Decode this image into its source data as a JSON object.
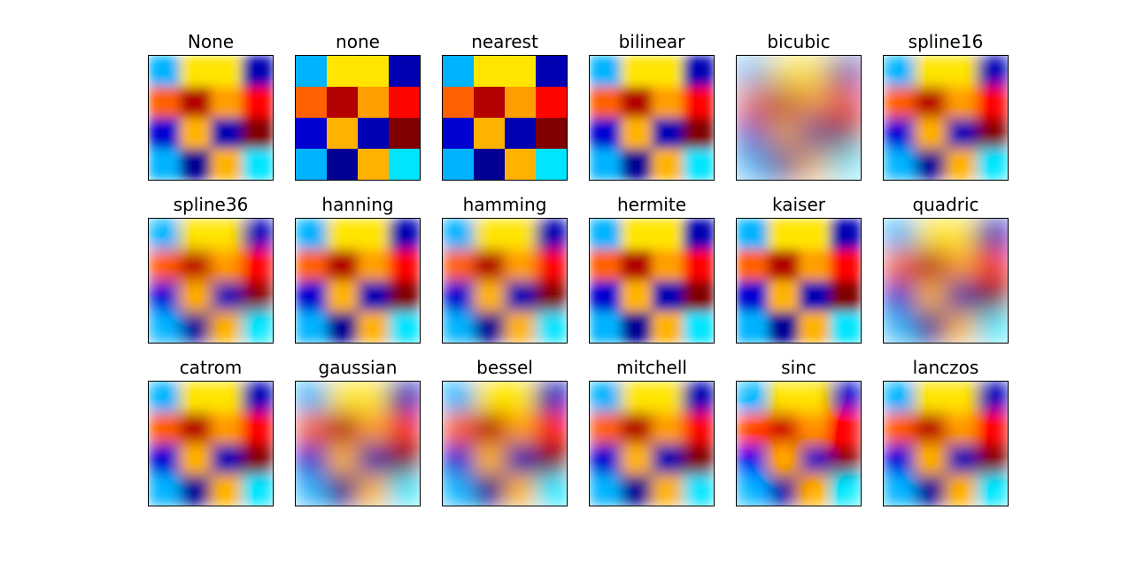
{
  "chart_data": {
    "type": "heatmap",
    "grid_rows": 3,
    "grid_cols": 6,
    "colormap": "jet",
    "matrix": [
      [
        0.3,
        0.65,
        0.65,
        0.05
      ],
      [
        0.78,
        0.95,
        0.72,
        0.87
      ],
      [
        0.08,
        0.7,
        0.05,
        1.0
      ],
      [
        0.3,
        0.02,
        0.7,
        0.35
      ]
    ],
    "panels": [
      {
        "title": "None",
        "blur": 6,
        "contrast": 1.0
      },
      {
        "title": "none",
        "blur": 0,
        "contrast": 1.0
      },
      {
        "title": "nearest",
        "blur": 0,
        "contrast": 1.0
      },
      {
        "title": "bilinear",
        "blur": 6,
        "contrast": 1.0
      },
      {
        "title": "bicubic",
        "blur": 18,
        "contrast": 0.9
      },
      {
        "title": "spline16",
        "blur": 8,
        "contrast": 1.05
      },
      {
        "title": "spline36",
        "blur": 9,
        "contrast": 1.1
      },
      {
        "title": "hanning",
        "blur": 7,
        "contrast": 1.0
      },
      {
        "title": "hamming",
        "blur": 8,
        "contrast": 1.0
      },
      {
        "title": "hermite",
        "blur": 6,
        "contrast": 1.0
      },
      {
        "title": "kaiser",
        "blur": 6,
        "contrast": 1.0
      },
      {
        "title": "quadric",
        "blur": 14,
        "contrast": 0.95
      },
      {
        "title": "catrom",
        "blur": 8,
        "contrast": 1.05
      },
      {
        "title": "gaussian",
        "blur": 13,
        "contrast": 0.95
      },
      {
        "title": "bessel",
        "blur": 12,
        "contrast": 1.0
      },
      {
        "title": "mitchell",
        "blur": 8,
        "contrast": 1.0
      },
      {
        "title": "sinc",
        "blur": 10,
        "contrast": 1.35
      },
      {
        "title": "lanczos",
        "blur": 9,
        "contrast": 1.1
      }
    ]
  }
}
